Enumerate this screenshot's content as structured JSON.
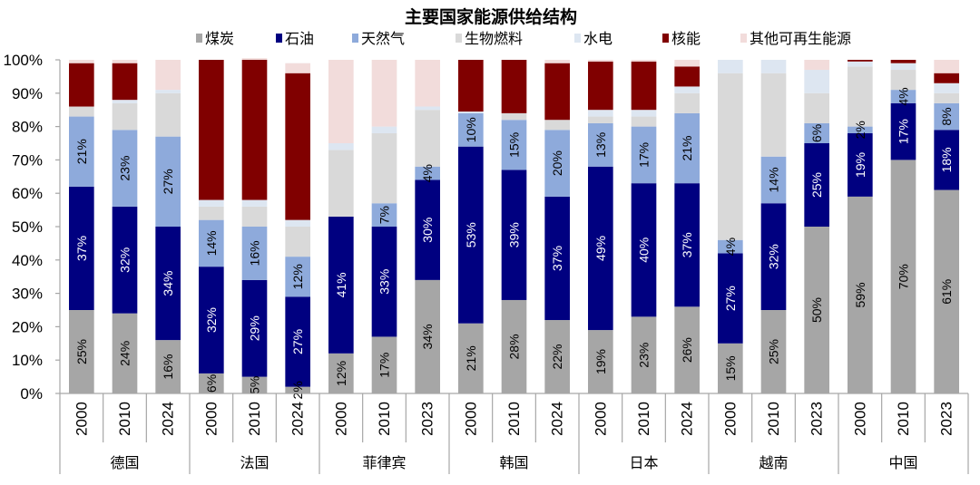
{
  "chart_data": {
    "type": "bar",
    "stacked": true,
    "percent_stacked": true,
    "title": "主要国家能源供给结构",
    "xlabel": "",
    "ylabel": "",
    "ylim": [
      0,
      100
    ],
    "yticks": [
      "0%",
      "10%",
      "20%",
      "30%",
      "40%",
      "50%",
      "60%",
      "70%",
      "80%",
      "90%",
      "100%"
    ],
    "legend_position": "top",
    "grid": false,
    "groups": [
      {
        "country": "德国",
        "years": [
          "2000",
          "2010",
          "2024"
        ]
      },
      {
        "country": "法国",
        "years": [
          "2000",
          "2010",
          "2024"
        ]
      },
      {
        "country": "菲律宾",
        "years": [
          "2000",
          "2010",
          "2023"
        ]
      },
      {
        "country": "韩国",
        "years": [
          "2000",
          "2010",
          "2024"
        ]
      },
      {
        "country": "日本",
        "years": [
          "2000",
          "2010",
          "2024"
        ]
      },
      {
        "country": "越南",
        "years": [
          "2000",
          "2010",
          "2023"
        ]
      },
      {
        "country": "中国",
        "years": [
          "2000",
          "2010",
          "2023"
        ]
      }
    ],
    "categories": [
      "德国 2000",
      "德国 2010",
      "德国 2024",
      "法国 2000",
      "法国 2010",
      "法国 2024",
      "菲律宾 2000",
      "菲律宾 2010",
      "菲律宾 2023",
      "韩国 2000",
      "韩国 2010",
      "韩国 2024",
      "日本 2000",
      "日本 2010",
      "日本 2024",
      "越南 2000",
      "越南 2010",
      "越南 2023",
      "中国 2000",
      "中国 2010",
      "中国 2023"
    ],
    "series": [
      {
        "name": "煤炭",
        "color": "#a6a6a6",
        "label_color": "#000000",
        "values": [
          25,
          24,
          16,
          6,
          5,
          2,
          12,
          17,
          34,
          21,
          28,
          22,
          19,
          23,
          26,
          15,
          25,
          50,
          59,
          70,
          61
        ],
        "labels": [
          "25%",
          "24%",
          "16%",
          "6%",
          "5%",
          "2%",
          "12%",
          "17%",
          "34%",
          "21%",
          "28%",
          "22%",
          "19%",
          "23%",
          "26%",
          "15%",
          "25%",
          "50%",
          "59%",
          "70%",
          "61%"
        ]
      },
      {
        "name": "石油",
        "color": "#000080",
        "label_color": "#ffffff",
        "values": [
          37,
          32,
          34,
          32,
          29,
          27,
          41,
          33,
          30,
          53,
          39,
          37,
          49,
          40,
          37,
          27,
          32,
          25,
          19,
          17,
          18
        ],
        "labels": [
          "37%",
          "32%",
          "34%",
          "32%",
          "29%",
          "27%",
          "41%",
          "33%",
          "30%",
          "53%",
          "39%",
          "37%",
          "49%",
          "40%",
          "37%",
          "27%",
          "32%",
          "25%",
          "19%",
          "17%",
          "18%"
        ]
      },
      {
        "name": "天然气",
        "color": "#8eaadb",
        "label_color": "#000000",
        "values": [
          21,
          23,
          27,
          14,
          16,
          12,
          0,
          7,
          4,
          10,
          15,
          20,
          13,
          17,
          21,
          4,
          14,
          6,
          2,
          4,
          8
        ],
        "labels": [
          "21%",
          "23%",
          "27%",
          "14%",
          "16%",
          "12%",
          "",
          "7%",
          "4%",
          "10%",
          "15%",
          "20%",
          "13%",
          "17%",
          "21%",
          "4%",
          "14%",
          "6%",
          "2%",
          "4%",
          "8%"
        ]
      },
      {
        "name": "生物燃料",
        "color": "#d9d9d9",
        "label_color": "#000000",
        "values": [
          3,
          8,
          13,
          4,
          6,
          9,
          20,
          21,
          17,
          0,
          2,
          3,
          2,
          3,
          6,
          50,
          25,
          9,
          18,
          6,
          3
        ],
        "labels": []
      },
      {
        "name": "水电",
        "color": "#dde6f1",
        "label_color": "#000000",
        "values": [
          0,
          1,
          1,
          2,
          2,
          2,
          2,
          2,
          1,
          0.5,
          0,
          0,
          2,
          2,
          2,
          4,
          4,
          7,
          1.5,
          2,
          3
        ],
        "labels": []
      },
      {
        "name": "核能",
        "color": "#800000",
        "label_color": "#000000",
        "values": [
          13,
          11,
          0,
          42,
          42,
          44,
          0,
          0,
          0,
          15.5,
          16,
          17,
          14.5,
          14.5,
          6,
          0,
          0,
          0,
          0.5,
          1,
          3
        ],
        "labels": []
      },
      {
        "name": "其他可再生能源",
        "color": "#f2dcdb",
        "label_color": "#000000",
        "values": [
          1,
          1,
          9,
          0,
          0.5,
          3,
          25,
          20,
          14,
          0,
          0,
          1,
          0.5,
          0.5,
          2,
          0,
          0,
          3,
          0,
          0,
          4
        ],
        "labels": []
      }
    ]
  }
}
